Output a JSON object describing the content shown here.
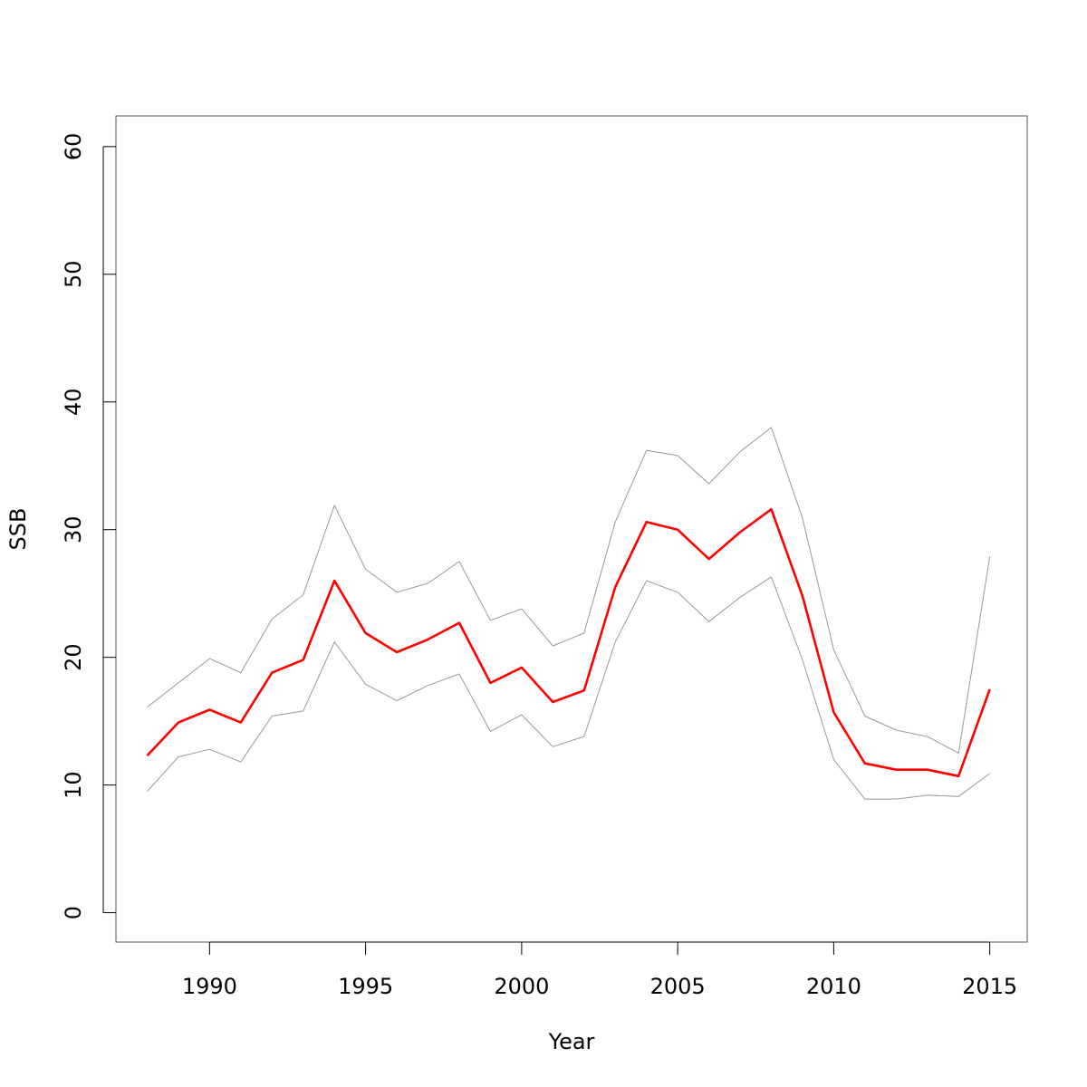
{
  "chart_data": {
    "type": "line",
    "title": "",
    "xlabel": "Year",
    "ylabel": "SSB",
    "xlim": [
      1987,
      2016.2
    ],
    "ylim": [
      -2.3,
      62.4
    ],
    "xticks": [
      1990,
      1995,
      2000,
      2005,
      2010,
      2015
    ],
    "yticks": [
      0,
      10,
      20,
      30,
      40,
      50,
      60
    ],
    "grid": false,
    "legend": "none",
    "x": [
      1988,
      1989,
      1990,
      1991,
      1992,
      1993,
      1994,
      1995,
      1996,
      1997,
      1998,
      1999,
      2000,
      2001,
      2002,
      2003,
      2004,
      2005,
      2006,
      2007,
      2008,
      2009,
      2010,
      2011,
      2012,
      2013,
      2014,
      2015
    ],
    "series": [
      {
        "color": "#ff0000",
        "style": "thick",
        "values": [
          12.3,
          14.9,
          15.9,
          14.9,
          18.8,
          19.8,
          26.0,
          21.9,
          20.4,
          21.4,
          22.7,
          18.0,
          19.2,
          16.5,
          17.4,
          25.5,
          30.6,
          30.0,
          27.7,
          29.8,
          31.6,
          24.8,
          15.7,
          11.7,
          11.2,
          11.2,
          10.7,
          17.5
        ]
      },
      {
        "color": "#999999",
        "style": "thin",
        "values": [
          16.1,
          18.0,
          19.9,
          18.8,
          23.0,
          24.9,
          31.9,
          26.9,
          25.1,
          25.8,
          27.5,
          22.9,
          23.8,
          20.9,
          21.9,
          30.6,
          36.2,
          35.8,
          33.6,
          36.1,
          38.0,
          30.9,
          20.6,
          15.4,
          14.3,
          13.8,
          12.5,
          27.9
        ]
      },
      {
        "color": "#999999",
        "style": "thin",
        "values": [
          9.5,
          12.2,
          12.8,
          11.8,
          15.4,
          15.8,
          21.2,
          17.9,
          16.6,
          17.8,
          18.7,
          14.2,
          15.5,
          13.0,
          13.8,
          21.2,
          26.0,
          25.1,
          22.8,
          24.7,
          26.3,
          19.8,
          12.0,
          8.9,
          8.9,
          9.2,
          9.1,
          10.9
        ]
      }
    ]
  }
}
